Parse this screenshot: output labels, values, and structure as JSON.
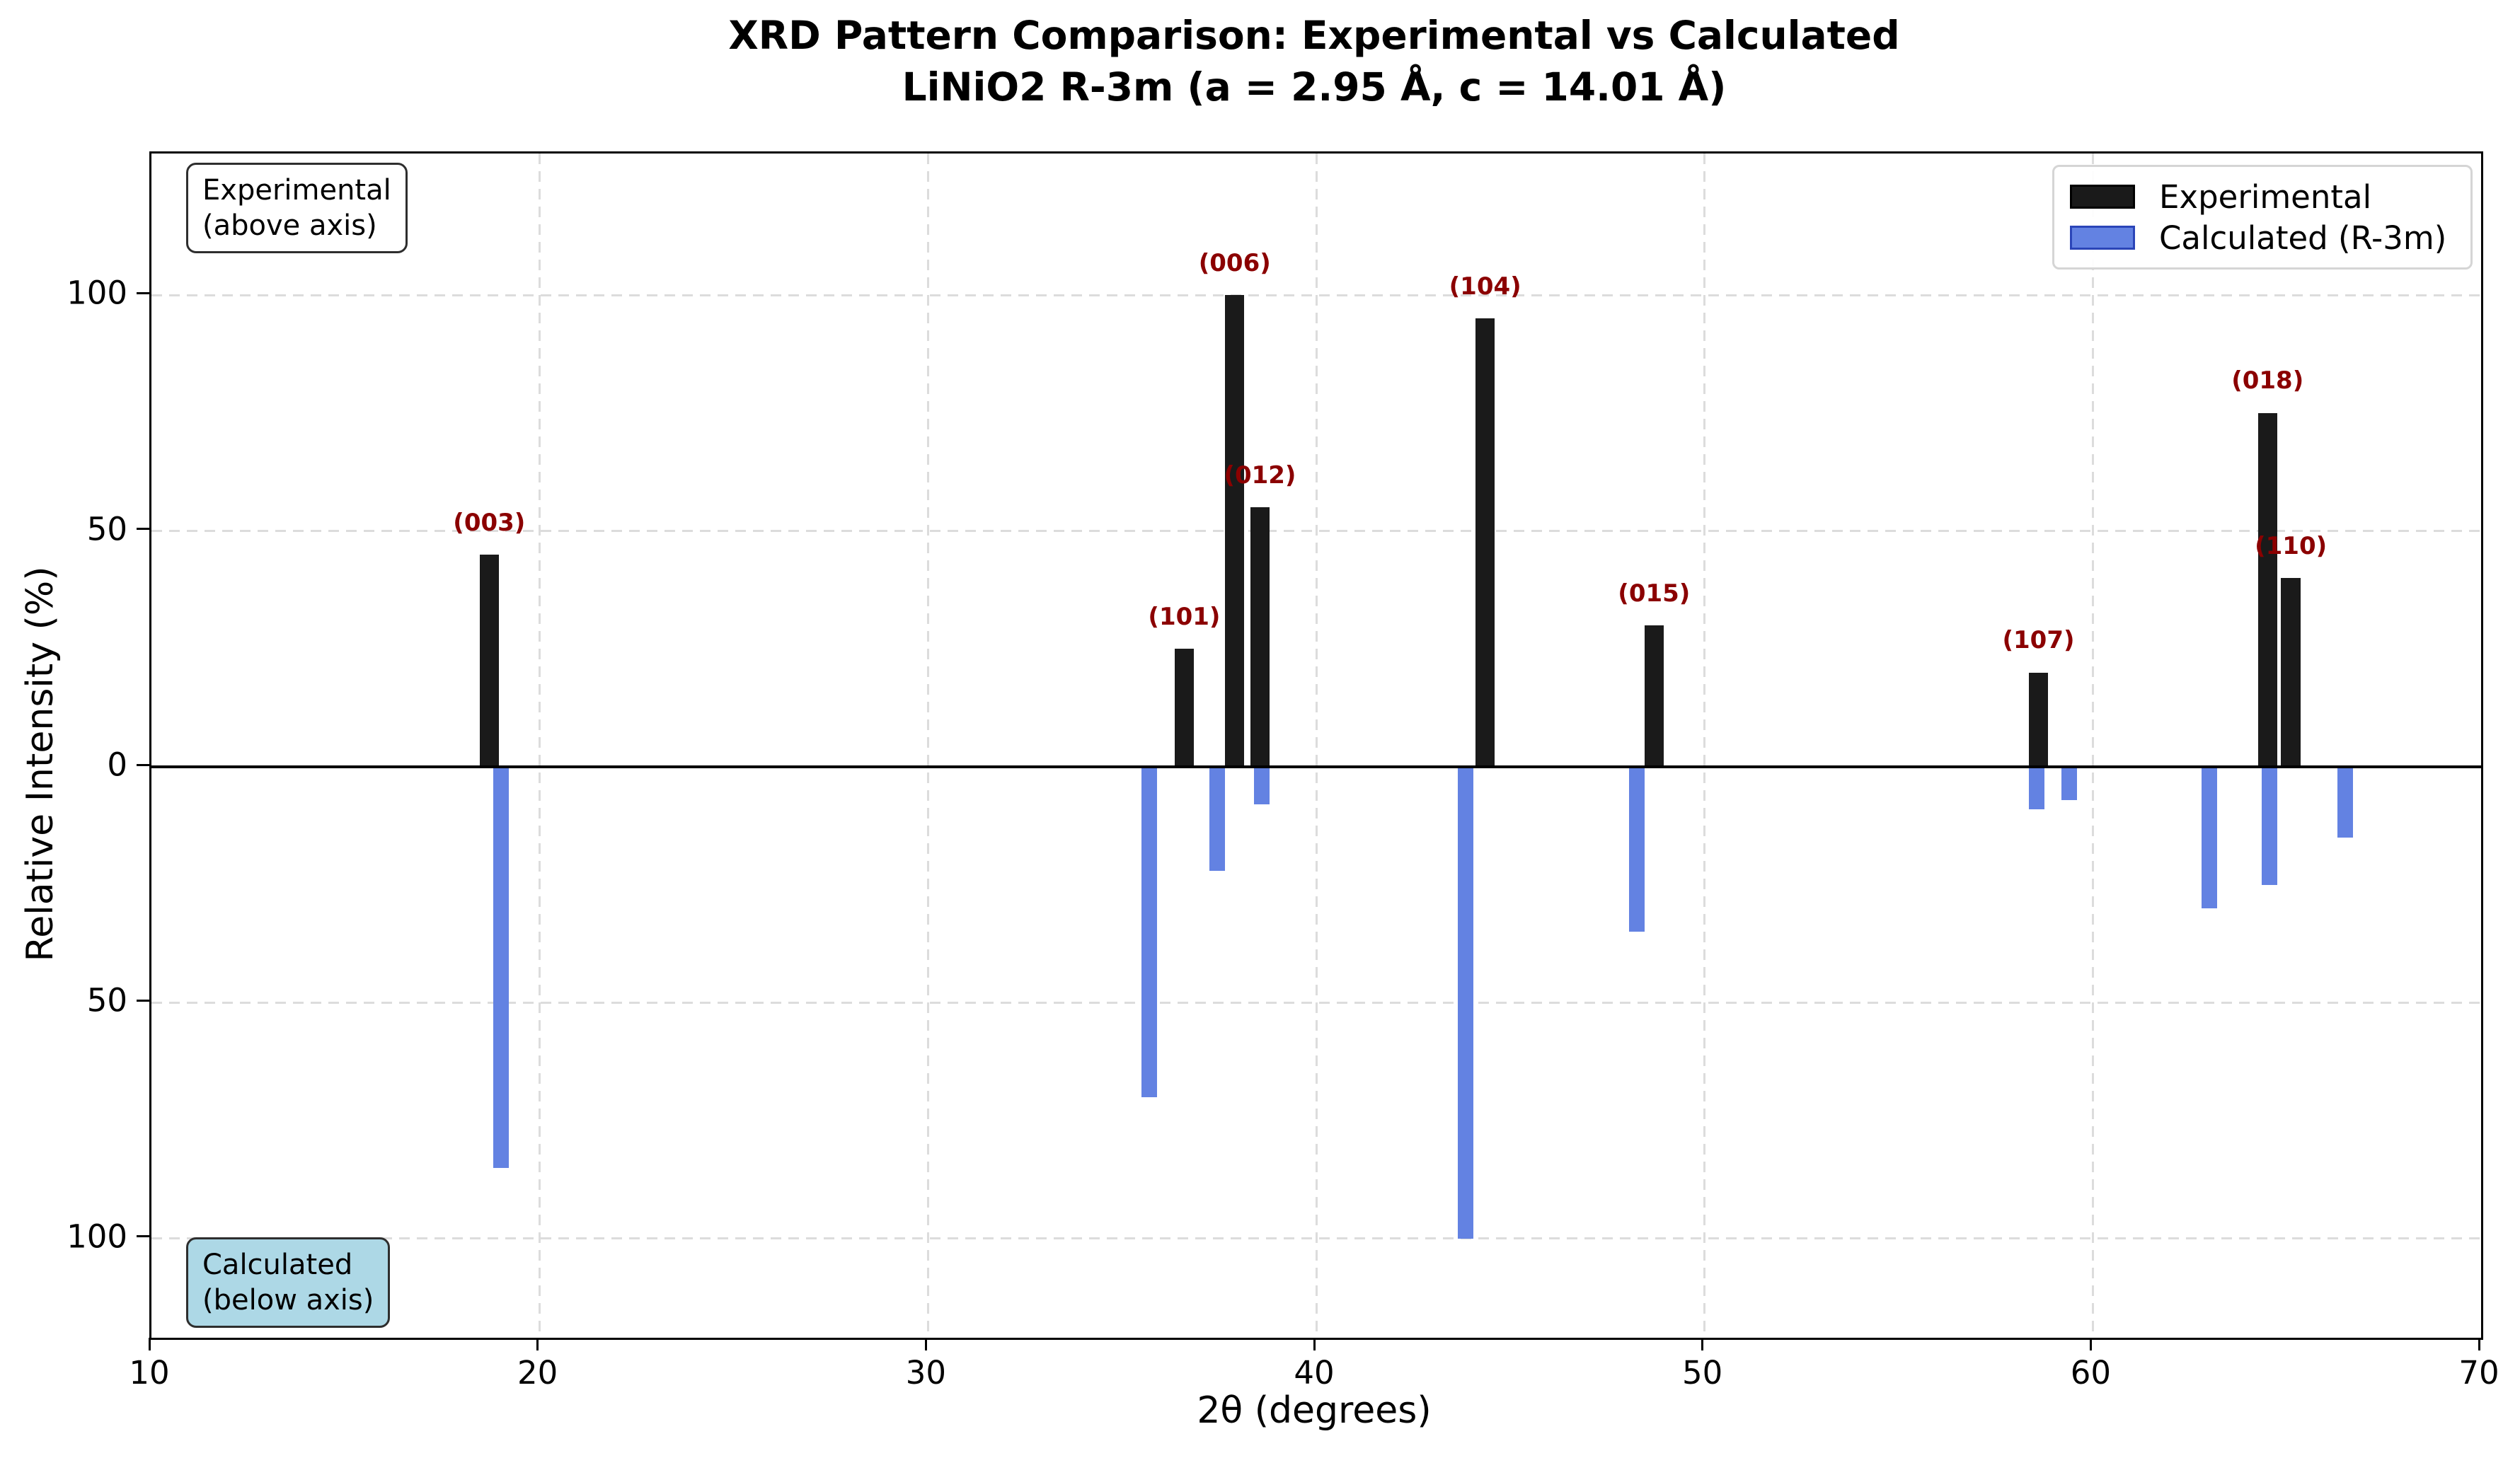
{
  "title": {
    "line1": "XRD Pattern Comparison: Experimental vs Calculated",
    "line2": "LiNiO2 R-3m (a = 2.95 Å, c = 14.01 Å)"
  },
  "axes": {
    "xlabel": "2θ (degrees)",
    "ylabel": "Relative Intensity (%)",
    "x_ticks": [
      10,
      20,
      30,
      40,
      50,
      60,
      70
    ],
    "y_ticks": [
      {
        "value": 100,
        "label": "100"
      },
      {
        "value": 50,
        "label": "50"
      },
      {
        "value": 0,
        "label": "0"
      },
      {
        "value": -50,
        "label": "50"
      },
      {
        "value": -100,
        "label": "100"
      }
    ]
  },
  "annotations": {
    "above": {
      "line1": "Experimental",
      "line2": "(above axis)",
      "bg": "#FFFFFF"
    },
    "below": {
      "line1": "Calculated",
      "line2": "(below axis)",
      "bg": "#ADD8E6"
    }
  },
  "legend": {
    "items": [
      {
        "label": "Experimental",
        "swatch_fill": "#1a1a1a",
        "swatch_border": "#000000"
      },
      {
        "label": "Calculated (R-3m)",
        "swatch_fill": "#6382E2",
        "swatch_border": "#2B45B8"
      }
    ]
  },
  "colors": {
    "experimental_bar": "#1a1a1a",
    "calculated_bar": "#6382E2",
    "hkl_label": "#8B0000",
    "grid": "#dcdcdc",
    "axis": "#000000"
  },
  "chart_data": {
    "type": "bar",
    "title": "XRD Pattern Comparison: Experimental vs Calculated — LiNiO2 R-3m (a = 2.95 Å, c = 14.01 Å)",
    "xlabel": "2θ (degrees)",
    "ylabel": "Relative Intensity (%)",
    "xlim": [
      10,
      70
    ],
    "ylim": [
      -121,
      130
    ],
    "grid": true,
    "legend_position": "upper right",
    "series": [
      {
        "name": "Experimental",
        "orientation": "above axis (positive)",
        "color": "#1a1a1a",
        "bar_width_deg": 0.5,
        "points": [
          {
            "two_theta": 18.7,
            "intensity": 45,
            "hkl": "(003)"
          },
          {
            "two_theta": 36.6,
            "intensity": 25,
            "hkl": "(101)"
          },
          {
            "two_theta": 37.9,
            "intensity": 100,
            "hkl": "(006)"
          },
          {
            "two_theta": 38.55,
            "intensity": 55,
            "hkl": "(012)"
          },
          {
            "two_theta": 44.35,
            "intensity": 95,
            "hkl": "(104)"
          },
          {
            "two_theta": 48.7,
            "intensity": 30,
            "hkl": "(015)"
          },
          {
            "two_theta": 58.6,
            "intensity": 20,
            "hkl": "(107)"
          },
          {
            "two_theta": 64.5,
            "intensity": 75,
            "hkl": "(018)"
          },
          {
            "two_theta": 65.1,
            "intensity": 40,
            "hkl": "(110)"
          }
        ]
      },
      {
        "name": "Calculated (R-3m)",
        "orientation": "below axis (plotted negative)",
        "color": "#6382E2",
        "bar_width_deg": 0.4,
        "points": [
          {
            "two_theta": 19.0,
            "intensity": 85
          },
          {
            "two_theta": 35.7,
            "intensity": 70
          },
          {
            "two_theta": 37.45,
            "intensity": 22
          },
          {
            "two_theta": 38.6,
            "intensity": 8
          },
          {
            "two_theta": 43.85,
            "intensity": 100
          },
          {
            "two_theta": 48.25,
            "intensity": 35
          },
          {
            "two_theta": 58.55,
            "intensity": 9
          },
          {
            "two_theta": 59.4,
            "intensity": 7
          },
          {
            "two_theta": 63.0,
            "intensity": 30
          },
          {
            "two_theta": 64.55,
            "intensity": 25
          },
          {
            "two_theta": 66.5,
            "intensity": 15
          }
        ]
      }
    ]
  }
}
